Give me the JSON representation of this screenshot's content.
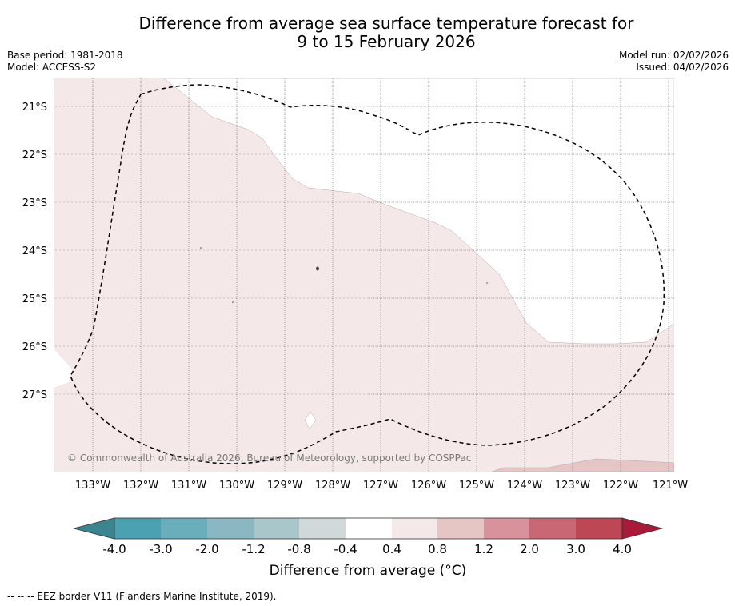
{
  "header": {
    "title_line1": "Difference from average sea surface temperature forecast for",
    "title_line2": "9 to 15 February 2026",
    "base_period": "Base period: 1981-2018",
    "model": "Model: ACCESS-S2",
    "model_run": "Model run: 02/02/2026",
    "issued": "Issued: 04/02/2026"
  },
  "map": {
    "lon_labels": [
      "133°W",
      "132°W",
      "131°W",
      "130°W",
      "129°W",
      "128°W",
      "127°W",
      "126°W",
      "125°W",
      "124°W",
      "123°W",
      "122°W",
      "121°W"
    ],
    "lat_labels": [
      "21°S",
      "22°S",
      "23°S",
      "24°S",
      "25°S",
      "26°S",
      "27°S"
    ],
    "copyright": "© Commonwealth of Australia 2026, Bureau of Meteorology, supported by COSPPac",
    "anomaly_fill_color": "#f4e9e8",
    "warm_fill_color": "#e6c6c4"
  },
  "colorbar": {
    "tick_labels": [
      "-4.0",
      "-3.0",
      "-2.0",
      "-1.2",
      "-0.8",
      "-0.4",
      "0.4",
      "0.8",
      "1.2",
      "2.0",
      "3.0",
      "4.0"
    ],
    "colors": [
      "#4ba1b2",
      "#6aaebb",
      "#8ab7c2",
      "#a9c6cb",
      "#d1d8d9",
      "#ffffff",
      "#f4e9e8",
      "#e6c6c4",
      "#d8929b",
      "#c96874",
      "#bd4755"
    ],
    "min_arrow_color": "#3b8591",
    "max_arrow_color": "#a8193a",
    "label": "Difference from average (°C)"
  },
  "footnote": "--  --  -- EEZ border V11 (Flanders Marine Institute, 2019)."
}
